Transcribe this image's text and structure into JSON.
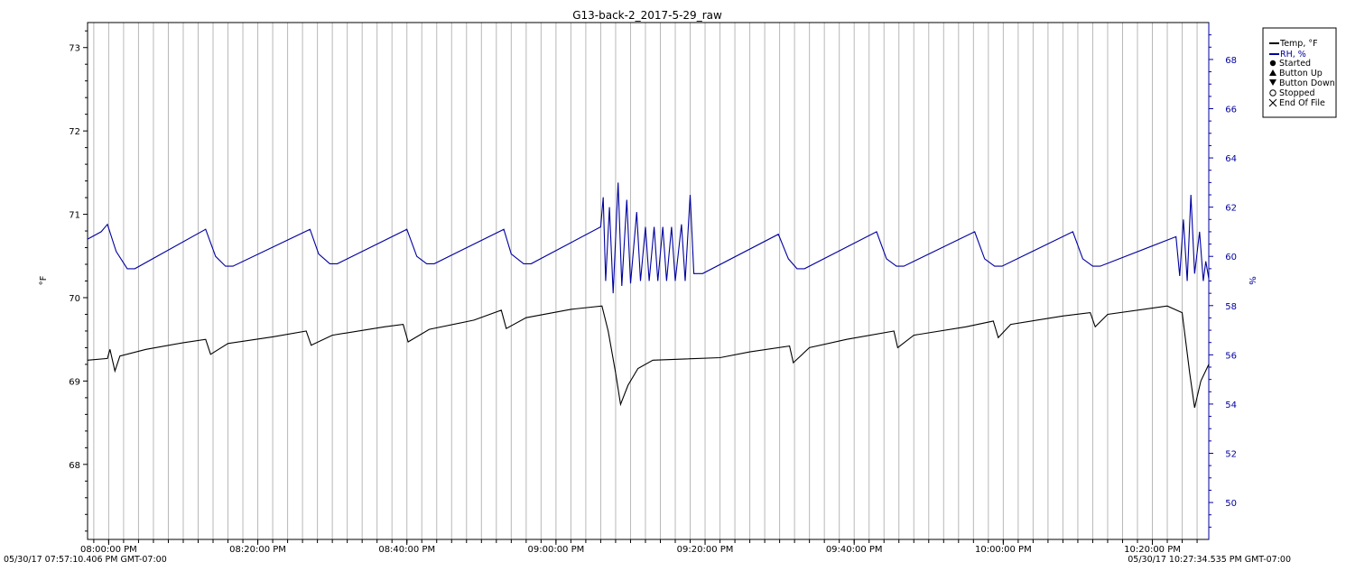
{
  "chart_data": {
    "type": "line",
    "title": "G13-back-2_2017-5-29_raw",
    "ylabel_left": "°F",
    "ylabel_right": "%",
    "x_range": [
      "07:57:10 PM",
      "10:27:34 PM"
    ],
    "x_ticks": [
      "08:00:00 PM",
      "08:20:00 PM",
      "08:40:00 PM",
      "09:00:00 PM",
      "09:20:00 PM",
      "09:40:00 PM",
      "10:00:00 PM",
      "10:20:00 PM"
    ],
    "y_left": {
      "ticks": [
        68,
        69,
        70,
        71,
        72,
        73
      ],
      "range": [
        67.1,
        73.3
      ]
    },
    "y_right": {
      "ticks": [
        50,
        52,
        54,
        56,
        58,
        60,
        62,
        64,
        66,
        68
      ],
      "range": [
        48.5,
        69.5
      ]
    },
    "grid": "vertical lines",
    "legend_position": "top-right",
    "legend": [
      {
        "label": "Temp, °F",
        "symbol": "line",
        "color": "#000000"
      },
      {
        "label": "RH, %",
        "symbol": "line",
        "color": "#0000a0"
      },
      {
        "label": "Started",
        "symbol": "circle-filled"
      },
      {
        "label": "Button Up",
        "symbol": "triangle-up"
      },
      {
        "label": "Button Down",
        "symbol": "triangle-down"
      },
      {
        "label": "Stopped",
        "symbol": "circle-open"
      },
      {
        "label": "End Of File",
        "symbol": "x"
      }
    ],
    "start_stamp": "05/30/17 07:57:10.406 PM GMT-07:00",
    "end_stamp": "05/30/17 10:27:34.535 PM GMT-07:00",
    "series": [
      {
        "name": "Temp, °F",
        "axis": "left",
        "color": "#000000",
        "points": [
          [
            "07:57:10 PM",
            69.25
          ],
          [
            "07:59:50 PM",
            69.27
          ],
          [
            "08:00:10 PM",
            69.38
          ],
          [
            "08:00:50 PM",
            69.12
          ],
          [
            "08:01:30 PM",
            69.3
          ],
          [
            "08:05:00 PM",
            69.38
          ],
          [
            "08:10:00 PM",
            69.46
          ],
          [
            "08:13:00 PM",
            69.5
          ],
          [
            "08:13:40 PM",
            69.32
          ],
          [
            "08:16:00 PM",
            69.45
          ],
          [
            "08:22:00 PM",
            69.53
          ],
          [
            "08:26:30 PM",
            69.6
          ],
          [
            "08:27:10 PM",
            69.43
          ],
          [
            "08:30:00 PM",
            69.55
          ],
          [
            "08:37:00 PM",
            69.65
          ],
          [
            "08:39:30 PM",
            69.68
          ],
          [
            "08:40:10 PM",
            69.47
          ],
          [
            "08:43:00 PM",
            69.62
          ],
          [
            "08:49:00 PM",
            69.73
          ],
          [
            "08:52:40 PM",
            69.85
          ],
          [
            "08:53:20 PM",
            69.63
          ],
          [
            "08:56:00 PM",
            69.76
          ],
          [
            "09:02:00 PM",
            69.86
          ],
          [
            "09:06:10 PM",
            69.9
          ],
          [
            "09:07:00 PM",
            69.6
          ],
          [
            "09:08:00 PM",
            69.1
          ],
          [
            "09:08:40 PM",
            68.72
          ],
          [
            "09:09:40 PM",
            68.95
          ],
          [
            "09:11:00 PM",
            69.15
          ],
          [
            "09:13:00 PM",
            69.25
          ],
          [
            "09:22:00 PM",
            69.28
          ],
          [
            "09:26:00 PM",
            69.35
          ],
          [
            "09:31:20 PM",
            69.42
          ],
          [
            "09:31:50 PM",
            69.22
          ],
          [
            "09:34:00 PM",
            69.4
          ],
          [
            "09:39:00 PM",
            69.5
          ],
          [
            "09:45:20 PM",
            69.6
          ],
          [
            "09:45:50 PM",
            69.4
          ],
          [
            "09:48:00 PM",
            69.55
          ],
          [
            "09:55:00 PM",
            69.65
          ],
          [
            "09:58:40 PM",
            69.72
          ],
          [
            "09:59:20 PM",
            69.52
          ],
          [
            "10:01:00 PM",
            69.68
          ],
          [
            "10:08:00 PM",
            69.78
          ],
          [
            "10:11:40 PM",
            69.82
          ],
          [
            "10:12:20 PM",
            69.65
          ],
          [
            "10:14:00 PM",
            69.8
          ],
          [
            "10:22:00 PM",
            69.9
          ],
          [
            "10:24:00 PM",
            69.82
          ],
          [
            "10:25:00 PM",
            69.1
          ],
          [
            "10:25:40 PM",
            68.68
          ],
          [
            "10:26:30 PM",
            69.0
          ],
          [
            "10:27:34 PM",
            69.2
          ]
        ]
      },
      {
        "name": "RH, %",
        "axis": "right",
        "color": "#0000a0",
        "points": [
          [
            "07:57:10 PM",
            60.7
          ],
          [
            "07:59:00 PM",
            61.0
          ],
          [
            "07:59:50 PM",
            61.3
          ],
          [
            "08:01:00 PM",
            60.2
          ],
          [
            "08:02:30 PM",
            59.5
          ],
          [
            "08:03:30 PM",
            59.5
          ],
          [
            "08:13:00 PM",
            61.1
          ],
          [
            "08:14:20 PM",
            60.0
          ],
          [
            "08:15:40 PM",
            59.6
          ],
          [
            "08:16:40 PM",
            59.6
          ],
          [
            "08:27:00 PM",
            61.1
          ],
          [
            "08:28:10 PM",
            60.1
          ],
          [
            "08:29:40 PM",
            59.7
          ],
          [
            "08:30:40 PM",
            59.7
          ],
          [
            "08:40:00 PM",
            61.1
          ],
          [
            "08:41:20 PM",
            60.0
          ],
          [
            "08:42:40 PM",
            59.7
          ],
          [
            "08:43:40 PM",
            59.7
          ],
          [
            "08:53:00 PM",
            61.1
          ],
          [
            "08:54:00 PM",
            60.1
          ],
          [
            "08:55:40 PM",
            59.7
          ],
          [
            "08:56:40 PM",
            59.7
          ],
          [
            "09:06:00 PM",
            61.2
          ],
          [
            "09:06:20 PM",
            62.4
          ],
          [
            "09:06:40 PM",
            59.0
          ],
          [
            "09:07:10 PM",
            62.0
          ],
          [
            "09:07:40 PM",
            58.5
          ],
          [
            "09:08:20 PM",
            63.0
          ],
          [
            "09:08:50 PM",
            58.8
          ],
          [
            "09:09:30 PM",
            62.3
          ],
          [
            "09:10:00 PM",
            58.9
          ],
          [
            "09:10:50 PM",
            61.8
          ],
          [
            "09:11:20 PM",
            59.0
          ],
          [
            "09:12:00 PM",
            61.2
          ],
          [
            "09:12:30 PM",
            59.0
          ],
          [
            "09:13:10 PM",
            61.2
          ],
          [
            "09:13:40 PM",
            59.0
          ],
          [
            "09:14:20 PM",
            61.2
          ],
          [
            "09:14:50 PM",
            59.0
          ],
          [
            "09:15:30 PM",
            61.2
          ],
          [
            "09:16:00 PM",
            59.0
          ],
          [
            "09:16:50 PM",
            61.3
          ],
          [
            "09:17:20 PM",
            59.0
          ],
          [
            "09:18:00 PM",
            62.5
          ],
          [
            "09:18:30 PM",
            59.3
          ],
          [
            "09:19:40 PM",
            59.3
          ],
          [
            "09:29:50 PM",
            60.9
          ],
          [
            "09:31:10 PM",
            59.9
          ],
          [
            "09:32:20 PM",
            59.5
          ],
          [
            "09:33:20 PM",
            59.5
          ],
          [
            "09:43:00 PM",
            61.0
          ],
          [
            "09:44:20 PM",
            59.9
          ],
          [
            "09:45:40 PM",
            59.6
          ],
          [
            "09:46:40 PM",
            59.6
          ],
          [
            "09:56:10 PM",
            61.0
          ],
          [
            "09:57:30 PM",
            59.9
          ],
          [
            "09:58:50 PM",
            59.6
          ],
          [
            "09:59:50 PM",
            59.6
          ],
          [
            "10:09:20 PM",
            61.0
          ],
          [
            "10:10:40 PM",
            59.9
          ],
          [
            "10:12:00 PM",
            59.6
          ],
          [
            "10:13:00 PM",
            59.6
          ],
          [
            "10:23:10 PM",
            60.8
          ],
          [
            "10:23:40 PM",
            59.2
          ],
          [
            "10:24:10 PM",
            61.5
          ],
          [
            "10:24:40 PM",
            59.0
          ],
          [
            "10:25:10 PM",
            62.5
          ],
          [
            "10:25:40 PM",
            59.3
          ],
          [
            "10:26:20 PM",
            61.0
          ],
          [
            "10:26:50 PM",
            59.0
          ],
          [
            "10:27:10 PM",
            59.8
          ],
          [
            "10:27:34 PM",
            59.1
          ]
        ]
      }
    ]
  }
}
